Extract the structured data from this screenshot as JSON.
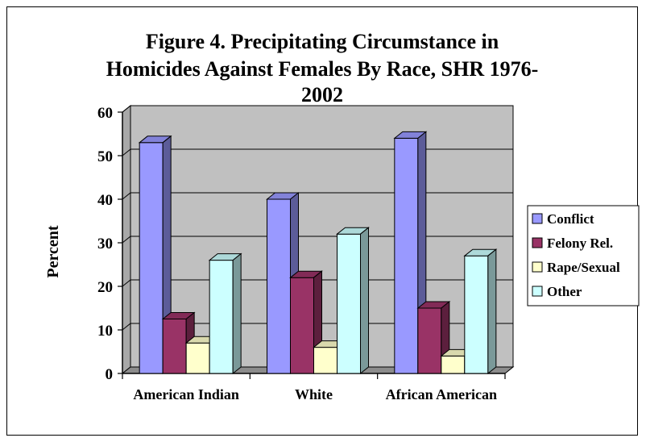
{
  "chart_data": {
    "type": "bar",
    "title_lines": [
      "Figure 4. Precipitating Circumstance in",
      "Homicides Against Females By Race, SHR 1976-",
      "2002"
    ],
    "ylabel": "Percent",
    "xlabel": "",
    "ylim": [
      0,
      60
    ],
    "yticks": [
      "0",
      "10",
      "20",
      "30",
      "40",
      "50",
      "60"
    ],
    "categories": [
      "American Indian",
      "White",
      "African American"
    ],
    "series": [
      {
        "name": "Conflict",
        "values": [
          53,
          40,
          54
        ],
        "color": "#9999ff"
      },
      {
        "name": "Felony Rel.",
        "values": [
          12.5,
          22,
          15
        ],
        "color": "#993366"
      },
      {
        "name": "Rape/Sexual",
        "values": [
          7,
          6,
          4
        ],
        "color": "#ffffcc"
      },
      {
        "name": "Other",
        "values": [
          26,
          32,
          27
        ],
        "color": "#ccffff"
      }
    ],
    "grid": true,
    "legend_position": "right",
    "plot_background": "#c0c0c0"
  }
}
